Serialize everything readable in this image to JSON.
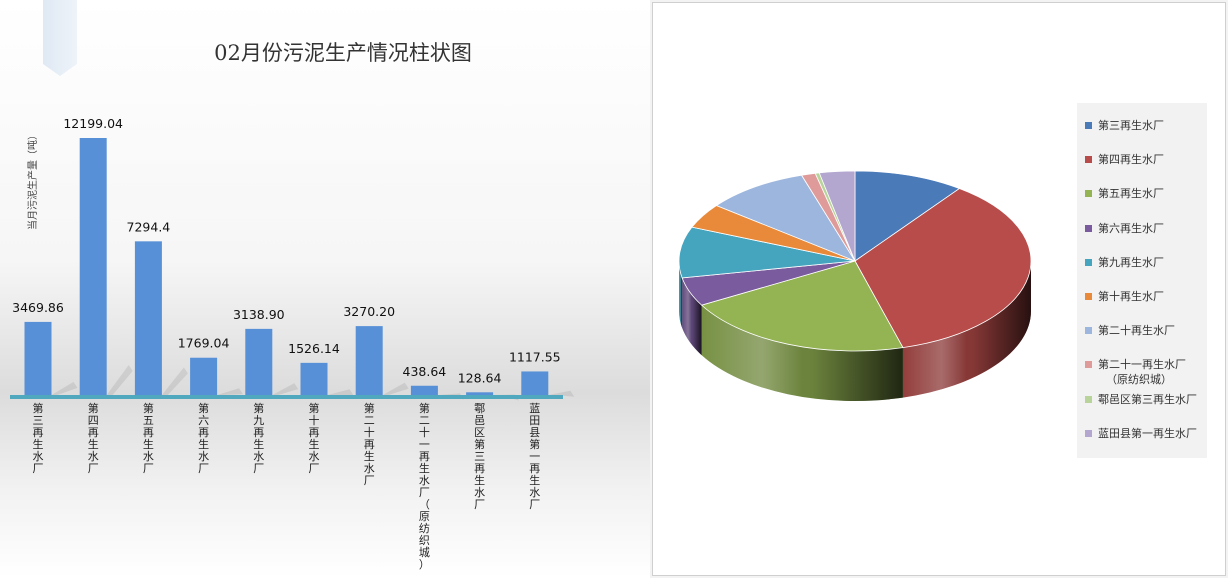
{
  "bar_chart": {
    "title": "02月份污泥生产情况柱状图",
    "ylabel": "当月污泥生产量（吨）"
  },
  "pie_chart": {
    "legend": [
      {
        "label": "第三再生水厂",
        "color": "#4a7ab8"
      },
      {
        "label": "第四再生水厂",
        "color": "#b84c4a"
      },
      {
        "label": "第五再生水厂",
        "color": "#94b454"
      },
      {
        "label": "第六再生水厂",
        "color": "#7a5c9e"
      },
      {
        "label": "第九再生水厂",
        "color": "#45a4be"
      },
      {
        "label": "第十再生水厂",
        "color": "#e98a3a"
      },
      {
        "label": "第二十再生水厂",
        "color": "#9db6de"
      },
      {
        "label": "第二十一再生水厂",
        "sub": "（原纺织城）",
        "color": "#df9b9a"
      },
      {
        "label": "鄠邑区第三再生水厂",
        "color": "#b8d49a"
      },
      {
        "label": "蓝田县第一再生水厂",
        "color": "#b3a6cf"
      }
    ]
  },
  "chart_data": [
    {
      "type": "bar",
      "title": "02月份污泥生产情况柱状图",
      "xlabel": "",
      "ylabel": "当月污泥生产量（吨）",
      "categories": [
        "第三再生水厂",
        "第四再生水厂",
        "第五再生水厂",
        "第六再生水厂",
        "第九再生水厂",
        "第十再生水厂",
        "第二十再生水厂",
        "第二十一再生水厂（原纺织城）",
        "鄠邑区第三再生水厂",
        "蓝田县第一再生水厂"
      ],
      "values": [
        3469.86,
        12199.04,
        7294.4,
        1769.04,
        3138.9,
        1526.14,
        3270.2,
        438.64,
        128.64,
        1117.55
      ],
      "value_labels": [
        "3469.86",
        "12199.04",
        "7294.4",
        "1769.04",
        "3138.90",
        "1526.14",
        "3270.20",
        "438.64",
        "128.64",
        "1117.55"
      ],
      "ylim": [
        0,
        12199.04
      ],
      "grid": false,
      "bar_color": "#5790d6"
    },
    {
      "type": "pie",
      "labels": [
        "第三再生水厂",
        "第四再生水厂",
        "第五再生水厂",
        "第六再生水厂",
        "第九再生水厂",
        "第十再生水厂",
        "第二十再生水厂",
        "第二十一再生水厂（原纺织城）",
        "鄠邑区第三再生水厂",
        "蓝田县第一再生水厂"
      ],
      "values": [
        3469.86,
        12199.04,
        7294.4,
        1769.04,
        3138.9,
        1526.14,
        3270.2,
        438.64,
        128.64,
        1117.55
      ],
      "legend": "right"
    }
  ]
}
